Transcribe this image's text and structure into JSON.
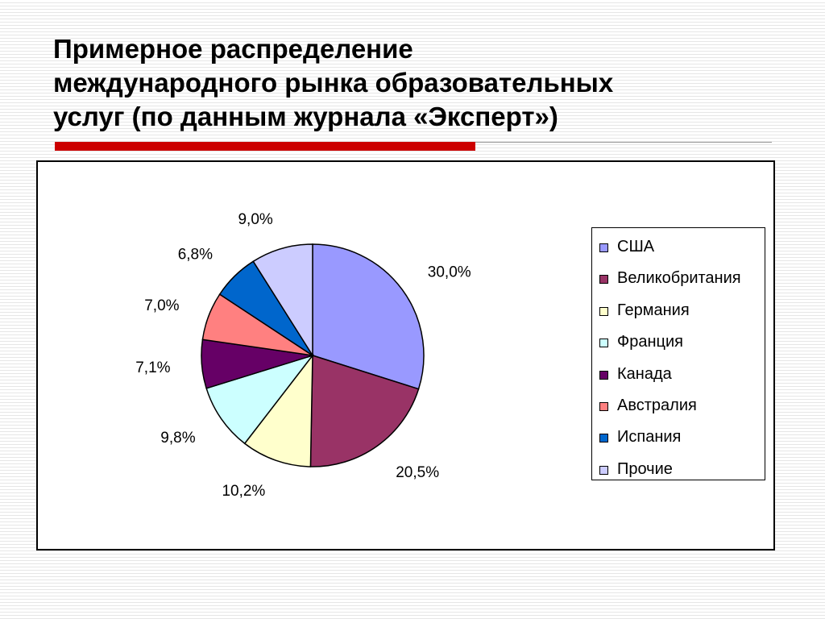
{
  "slide": {
    "title": "Примерное распределение\nмеждународного рынка образовательных\nуслуг (по данным журнала «Эксперт»)",
    "accent_color": "#cc0000"
  },
  "chart_data": {
    "type": "pie",
    "title": "",
    "legend_placement": "right",
    "slices": [
      {
        "name": "США",
        "value": 30.0,
        "label": "30,0%",
        "color": "#9999ff"
      },
      {
        "name": "Великобритания",
        "value": 20.5,
        "label": "20,5%",
        "color": "#993366"
      },
      {
        "name": "Германия",
        "value": 10.2,
        "label": "10,2%",
        "color": "#ffffcc"
      },
      {
        "name": "Франция",
        "value": 9.8,
        "label": "9,8%",
        "color": "#ccffff"
      },
      {
        "name": "Канада",
        "value": 7.1,
        "label": "7,1%",
        "color": "#660066"
      },
      {
        "name": "Австралия",
        "value": 7.0,
        "label": "7,0%",
        "color": "#ff8080"
      },
      {
        "name": "Испания",
        "value": 6.8,
        "label": "6,8%",
        "color": "#0066cc"
      },
      {
        "name": "Прочие",
        "value": 9.0,
        "label": "9,0%",
        "color": "#ccccff"
      }
    ]
  }
}
